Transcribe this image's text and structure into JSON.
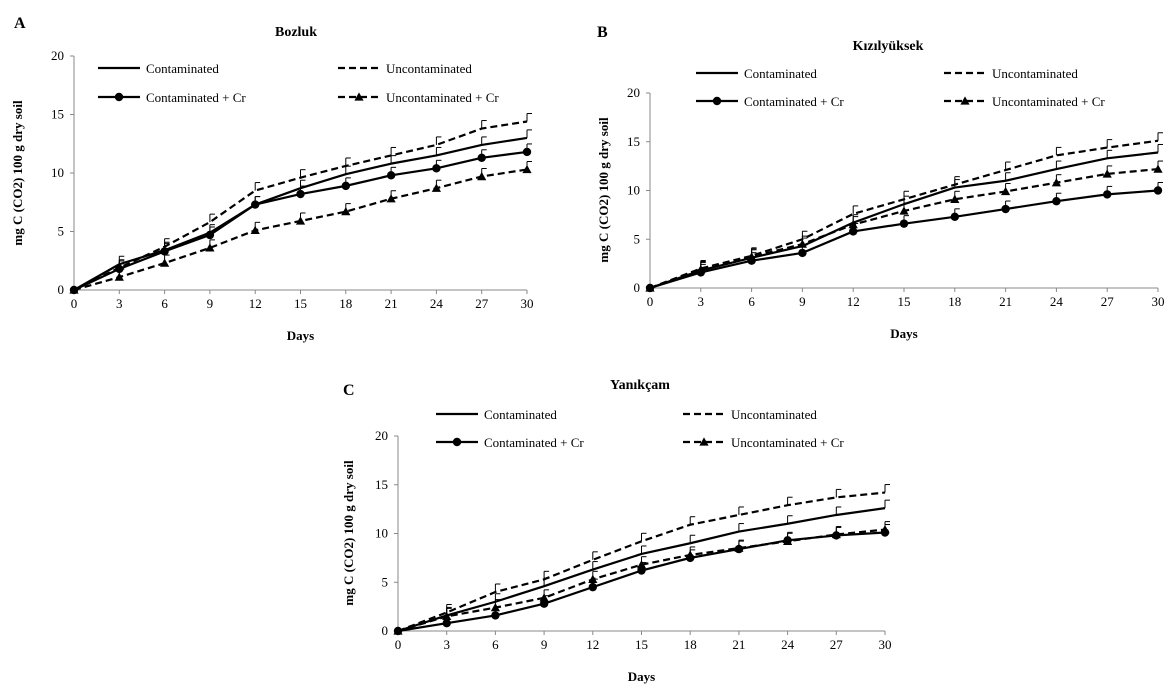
{
  "chart_data": [
    {
      "type": "line",
      "panel": "A",
      "title": "Bozluk",
      "xlabel": "Days",
      "ylabel": "mg C (CO2) 100 g dry soil",
      "x": [
        0,
        3,
        6,
        9,
        12,
        15,
        18,
        21,
        24,
        27,
        30
      ],
      "xlim": [
        0,
        30
      ],
      "ylim": [
        0,
        20
      ],
      "yticks": [
        0,
        5,
        10,
        15,
        20
      ],
      "legend_position": "top",
      "series": [
        {
          "name": "Contaminated",
          "style": "solid",
          "marker": "none",
          "values": [
            0,
            2.2,
            3.4,
            4.9,
            7.3,
            8.7,
            9.9,
            10.8,
            11.5,
            12.4,
            13.0
          ]
        },
        {
          "name": "Uncontaminated",
          "style": "dashed",
          "marker": "none",
          "values": [
            0,
            1.9,
            3.7,
            5.8,
            8.5,
            9.6,
            10.6,
            11.5,
            12.4,
            13.8,
            14.4
          ]
        },
        {
          "name": "Contaminated + Cr",
          "style": "solid",
          "marker": "circle",
          "values": [
            0,
            1.8,
            3.3,
            4.7,
            7.3,
            8.2,
            8.9,
            9.8,
            10.4,
            11.3,
            11.8
          ]
        },
        {
          "name": "Uncontaminated + Cr",
          "style": "dashed",
          "marker": "triangle",
          "values": [
            0,
            1.1,
            2.3,
            3.6,
            5.1,
            5.9,
            6.7,
            7.8,
            8.7,
            9.7,
            10.3
          ]
        }
      ]
    },
    {
      "type": "line",
      "panel": "B",
      "title": "Kızılyüksek",
      "xlabel": "Days",
      "ylabel": "mg C (CO2) 100 g dry soil",
      "x": [
        0,
        3,
        6,
        9,
        12,
        15,
        18,
        21,
        24,
        27,
        30
      ],
      "xlim": [
        0,
        30
      ],
      "ylim": [
        0,
        20
      ],
      "yticks": [
        0,
        5,
        10,
        15,
        20
      ],
      "legend_position": "top",
      "series": [
        {
          "name": "Contaminated",
          "style": "solid",
          "marker": "none",
          "values": [
            0,
            1.8,
            3.1,
            4.3,
            6.7,
            8.6,
            10.3,
            11.0,
            12.2,
            13.3,
            13.9
          ]
        },
        {
          "name": "Uncontaminated",
          "style": "dashed",
          "marker": "none",
          "values": [
            0,
            2.0,
            3.3,
            5.0,
            7.6,
            9.1,
            10.6,
            12.1,
            13.6,
            14.4,
            15.1
          ]
        },
        {
          "name": "Contaminated + Cr",
          "style": "solid",
          "marker": "circle",
          "values": [
            0,
            1.6,
            2.8,
            3.6,
            5.8,
            6.6,
            7.3,
            8.1,
            8.9,
            9.6,
            10.0
          ]
        },
        {
          "name": "Uncontaminated + Cr",
          "style": "dashed",
          "marker": "triangle",
          "values": [
            0,
            1.9,
            3.2,
            4.5,
            6.5,
            7.9,
            9.1,
            9.9,
            10.8,
            11.7,
            12.2
          ]
        }
      ]
    },
    {
      "type": "line",
      "panel": "C",
      "title": "Yanıkçam",
      "xlabel": "Days",
      "ylabel": "mg C (CO2) 100 g dry soil",
      "x": [
        0,
        3,
        6,
        9,
        12,
        15,
        18,
        21,
        24,
        27,
        30
      ],
      "xlim": [
        0,
        30
      ],
      "ylim": [
        0,
        20
      ],
      "yticks": [
        0,
        5,
        10,
        15,
        20
      ],
      "legend_position": "top",
      "series": [
        {
          "name": "Contaminated",
          "style": "solid",
          "marker": "none",
          "values": [
            0,
            1.6,
            3.0,
            4.6,
            6.3,
            7.9,
            9.0,
            10.2,
            11.0,
            11.9,
            12.6
          ]
        },
        {
          "name": "Uncontaminated",
          "style": "dashed",
          "marker": "none",
          "values": [
            0,
            1.9,
            4.0,
            5.3,
            7.3,
            9.2,
            10.9,
            11.9,
            12.9,
            13.7,
            14.2
          ]
        },
        {
          "name": "Contaminated + Cr",
          "style": "solid",
          "marker": "circle",
          "values": [
            0,
            0.8,
            1.6,
            2.8,
            4.5,
            6.2,
            7.5,
            8.4,
            9.3,
            9.8,
            10.1
          ]
        },
        {
          "name": "Uncontaminated + Cr",
          "style": "dashed",
          "marker": "triangle",
          "values": [
            0,
            1.5,
            2.4,
            3.4,
            5.3,
            6.8,
            7.8,
            8.5,
            9.2,
            9.9,
            10.4
          ]
        }
      ]
    }
  ]
}
